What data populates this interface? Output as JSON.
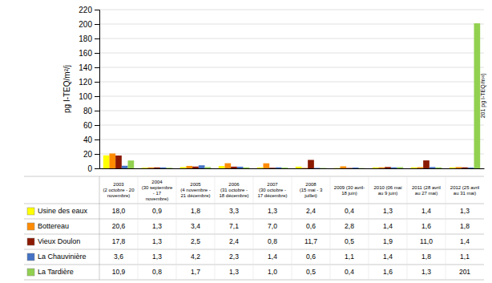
{
  "chart_data": {
    "type": "bar",
    "y_label": "pg I-TEQ/m²/j",
    "annotation": "201 pg I-TEQ/m²/j",
    "categories": [
      "2003\n(2 octobre - 20\nnovembre)",
      "2004\n(30 septembre\n- 17\nnovembre)",
      "2005\n(4 novembre -\n21 décembre)",
      "2006\n(31 octobre -\n18 décembre)",
      "2007\n(30 octobre -\n17 décembre)",
      "2008\n(15 mai - 3\njuillet)",
      "2009 (30 avril-\n18 juin)",
      "2010 (06 mai\nau 9 juin)",
      "2011 (28 avril\nau 27 mai)",
      "2012 (25 avril\nau 31 mai)"
    ],
    "series": [
      {
        "name": "Usine des eaux",
        "color": "#FFFF00",
        "values": [
          18.0,
          0.9,
          1.8,
          3.3,
          1.3,
          2.4,
          0.4,
          1.3,
          1.4,
          1.3
        ],
        "value_labels": [
          "18,0",
          "0,9",
          "1,8",
          "3,3",
          "1,3",
          "2,4",
          "0,4",
          "1,3",
          "1,4",
          "1,3"
        ]
      },
      {
        "name": "Bottereau",
        "color": "#FF8C00",
        "values": [
          20.6,
          1.3,
          3.4,
          7.1,
          7.0,
          0.6,
          2.8,
          1.4,
          1.6,
          1.8
        ],
        "value_labels": [
          "20,6",
          "1,3",
          "3,4",
          "7,1",
          "7,0",
          "0,6",
          "2,8",
          "1,4",
          "1,6",
          "1,8"
        ]
      },
      {
        "name": "Vieux Doulon",
        "color": "#8B1A00",
        "values": [
          17.8,
          1.3,
          2.5,
          2.4,
          0.8,
          11.7,
          0.5,
          1.9,
          11.0,
          1.4
        ],
        "value_labels": [
          "17,8",
          "1,3",
          "2,5",
          "2,4",
          "0,8",
          "11,7",
          "0,5",
          "1,9",
          "11,0",
          "1,4"
        ]
      },
      {
        "name": "La Chauvinière",
        "color": "#4472C4",
        "values": [
          3.6,
          1.3,
          4.2,
          2.3,
          1.4,
          0.6,
          1.1,
          1.4,
          1.8,
          1.1
        ],
        "value_labels": [
          "3,6",
          "1,3",
          "4,2",
          "2,3",
          "1,4",
          "0,6",
          "1,1",
          "1,4",
          "1,8",
          "1,1"
        ]
      },
      {
        "name": "La Tardière",
        "color": "#92D050",
        "values": [
          10.9,
          0.8,
          1.7,
          1.3,
          1.0,
          0.5,
          0.4,
          1.6,
          1.3,
          201
        ],
        "value_labels": [
          "10,9",
          "0,8",
          "1,7",
          "1,3",
          "1,0",
          "0,5",
          "0,4",
          "1,6",
          "1,3",
          "201"
        ]
      }
    ],
    "ylim": [
      0,
      220
    ],
    "yticks": [
      0,
      20,
      40,
      60,
      80,
      100,
      120,
      140,
      160,
      180,
      200,
      220
    ],
    "grid": true
  }
}
